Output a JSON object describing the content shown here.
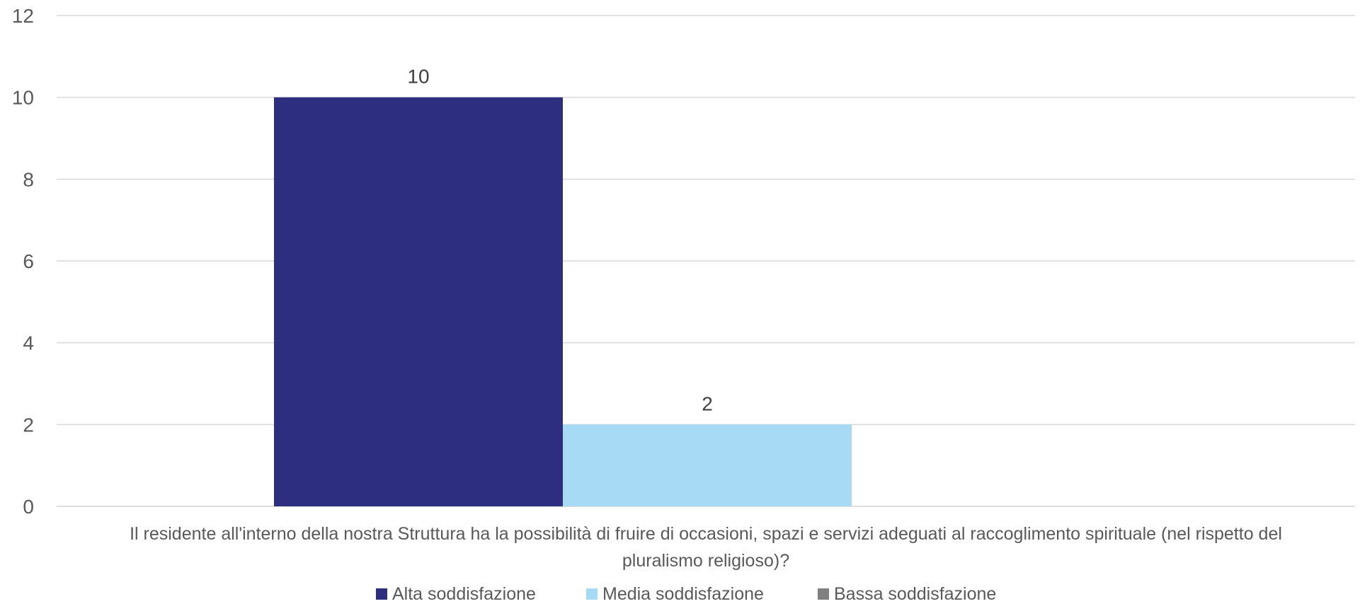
{
  "chart_data": {
    "type": "bar",
    "categories": [
      "Il residente all'interno della nostra Struttura ha la possibilità di fruire di occasioni, spazi e servizi adeguati al raccoglimento spirituale (nel rispetto del pluralismo religioso)?"
    ],
    "category_label_lines": [
      "Il residente all'interno della nostra Struttura ha la possibilità di fruire di occasioni, spazi e servizi adeguati al raccoglimento spirituale (nel rispetto del",
      "pluralismo religioso)?"
    ],
    "series": [
      {
        "name": "Alta soddisfazione",
        "values": [
          10
        ],
        "color": "#2E2E80"
      },
      {
        "name": "Media soddisfazione",
        "values": [
          2
        ],
        "color": "#A6DAF5"
      },
      {
        "name": "Bassa soddisfazione",
        "values": [
          0
        ],
        "color": "#808080"
      }
    ],
    "data_labels": [
      "10",
      "2",
      ""
    ],
    "y_ticks": [
      "0",
      "2",
      "4",
      "6",
      "8",
      "10",
      "12"
    ],
    "ylim": [
      0,
      12
    ],
    "grid": true,
    "legend_position": "bottom"
  }
}
